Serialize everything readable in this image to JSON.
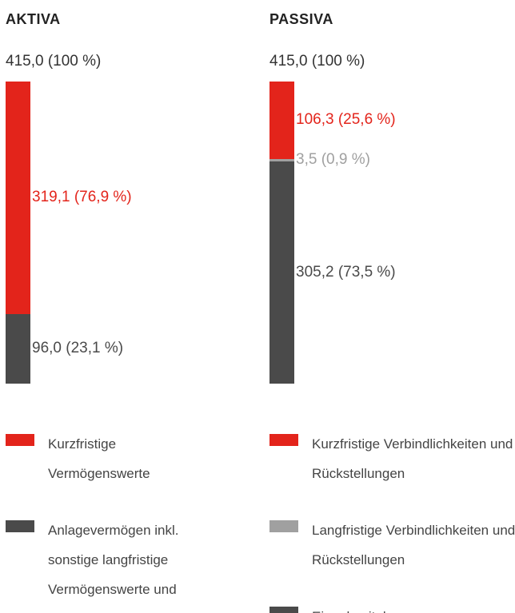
{
  "chart_data": [
    {
      "type": "stacked_bar",
      "title": "AKTIVA",
      "total": 415.0,
      "total_label": "415,0 (100 %)",
      "series": [
        {
          "name": "Kurzfristige Vermögenswerte",
          "color": "#e3241b",
          "values": [
            319.1
          ],
          "value_labels": [
            "319,1 (76,9 %)"
          ]
        },
        {
          "name": "Anlagevermögen inkl. sonstige langfristige Vermögenswerte und",
          "color": "#4a4a4a",
          "values": [
            96.0
          ],
          "value_labels": [
            "96,0 (23,1 %)"
          ]
        }
      ]
    },
    {
      "type": "stacked_bar",
      "title": "PASSIVA",
      "total": 415.0,
      "total_label": "415,0 (100 %)",
      "series": [
        {
          "name": "Kurzfristige Verbindlichkeiten und Rückstellungen",
          "color": "#e3241b",
          "values": [
            106.3
          ],
          "value_labels": [
            "106,3 (25,6 %)"
          ]
        },
        {
          "name": "Langfristige Verbindlichkeiten und Rückstellungen",
          "color": "#a0a0a0",
          "values": [
            3.5
          ],
          "value_labels": [
            "3,5 (0,9 %)"
          ]
        },
        {
          "name": "Eigenkapital",
          "color": "#4a4a4a",
          "values": [
            305.2
          ],
          "value_labels": [
            "305,2 (73,5 %)"
          ]
        }
      ]
    }
  ]
}
